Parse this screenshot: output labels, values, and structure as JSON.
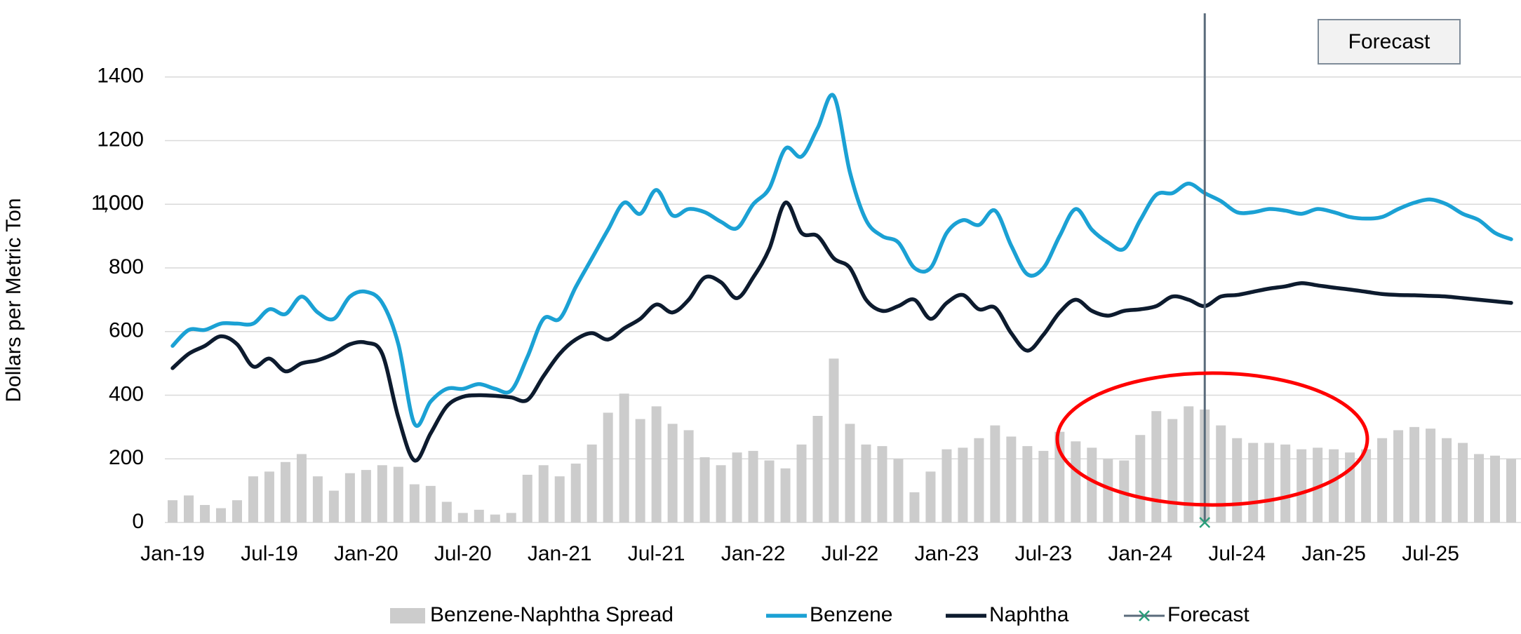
{
  "chart_data": {
    "type": "bar_line",
    "y_label": "Dollars per Metric Ton",
    "annotation": "Forecast",
    "categories": [
      "Jan-19",
      null,
      null,
      null,
      null,
      null,
      "Jul-19",
      null,
      null,
      null,
      null,
      null,
      "Jan-20",
      null,
      null,
      null,
      null,
      null,
      "Jul-20",
      null,
      null,
      null,
      null,
      null,
      "Jan-21",
      null,
      null,
      null,
      null,
      null,
      "Jul-21",
      null,
      null,
      null,
      null,
      null,
      "Jan-22",
      null,
      null,
      null,
      null,
      null,
      "Jul-22",
      null,
      null,
      null,
      null,
      null,
      "Jan-23",
      null,
      null,
      null,
      null,
      null,
      "Jul-23",
      null,
      null,
      null,
      null,
      null,
      "Jan-24",
      null,
      null,
      null,
      null,
      null,
      "Jul-24",
      null,
      null,
      null,
      null,
      null,
      "Jan-25",
      null,
      null,
      null,
      null,
      null,
      "Jul-25",
      null,
      null,
      null,
      null,
      null
    ],
    "series": [
      {
        "name": "Benzene-Naphtha Spread",
        "kind": "bar",
        "color": "#cccccc",
        "values": [
          70,
          85,
          55,
          45,
          70,
          145,
          160,
          190,
          215,
          145,
          100,
          155,
          165,
          180,
          175,
          120,
          115,
          65,
          30,
          40,
          25,
          30,
          150,
          180,
          145,
          185,
          245,
          345,
          405,
          325,
          365,
          310,
          290,
          205,
          180,
          220,
          225,
          195,
          170,
          245,
          335,
          515,
          310,
          245,
          240,
          200,
          95,
          160,
          230,
          235,
          265,
          305,
          270,
          240,
          225,
          285,
          255,
          235,
          200,
          195,
          275,
          350,
          325,
          365,
          355,
          305,
          265,
          250,
          250,
          245,
          230,
          235,
          230,
          220,
          230,
          265,
          290,
          300,
          295,
          265,
          250,
          215,
          210,
          200
        ]
      },
      {
        "name": "Benzene",
        "kind": "line",
        "color": "#1ba1d4",
        "values": [
          555,
          605,
          605,
          625,
          625,
          625,
          670,
          655,
          710,
          660,
          640,
          710,
          725,
          690,
          560,
          310,
          380,
          420,
          420,
          435,
          420,
          415,
          520,
          640,
          640,
          740,
          830,
          920,
          1005,
          970,
          1045,
          965,
          985,
          975,
          945,
          925,
          1000,
          1050,
          1175,
          1150,
          1240,
          1340,
          1100,
          950,
          900,
          880,
          800,
          800,
          910,
          950,
          935,
          980,
          870,
          780,
          800,
          900,
          985,
          920,
          880,
          860,
          950,
          1030,
          1035,
          1065,
          1035,
          1010,
          975,
          975,
          985,
          980,
          970,
          985,
          975,
          960,
          955,
          960,
          985,
          1005,
          1015,
          1000,
          970,
          950,
          910,
          890
        ]
      },
      {
        "name": "Naphtha",
        "kind": "line",
        "color": "#0d1b2e",
        "values": [
          485,
          530,
          555,
          585,
          560,
          490,
          515,
          475,
          500,
          510,
          530,
          560,
          565,
          530,
          330,
          195,
          280,
          365,
          395,
          400,
          398,
          393,
          385,
          460,
          530,
          575,
          595,
          575,
          610,
          640,
          685,
          660,
          700,
          770,
          755,
          705,
          770,
          860,
          1005,
          910,
          900,
          830,
          800,
          700,
          665,
          680,
          700,
          640,
          690,
          715,
          670,
          675,
          595,
          540,
          590,
          660,
          700,
          665,
          650,
          665,
          670,
          680,
          710,
          700,
          680,
          710,
          715,
          725,
          735,
          742,
          752,
          745,
          738,
          732,
          725,
          718,
          715,
          714,
          712,
          710,
          705,
          700,
          695,
          690
        ]
      },
      {
        "name": "Forecast",
        "kind": "marker",
        "color": "#5a6b7b",
        "values": [
          null,
          null,
          null,
          null,
          null,
          null,
          null,
          null,
          null,
          null,
          null,
          null,
          null,
          null,
          null,
          null,
          null,
          null,
          null,
          null,
          null,
          null,
          null,
          null,
          null,
          null,
          null,
          null,
          null,
          null,
          null,
          null,
          null,
          null,
          null,
          null,
          null,
          null,
          null,
          null,
          null,
          null,
          null,
          null,
          null,
          null,
          null,
          null,
          null,
          null,
          null,
          null,
          null,
          null,
          null,
          null,
          null,
          null,
          null,
          null,
          null,
          null,
          null,
          null,
          0,
          null,
          null,
          null,
          null,
          null,
          null,
          null,
          null,
          null,
          null,
          null,
          null,
          null,
          null,
          null,
          null,
          null,
          null,
          null
        ]
      }
    ],
    "ylim": [
      0,
      1600
    ],
    "yticks": [
      0,
      200,
      400,
      600,
      800,
      1000,
      1200,
      1400,
      {
        "value": 1000,
        "label": "1,000"
      }
    ],
    "grid": true,
    "legend": "bottom"
  }
}
